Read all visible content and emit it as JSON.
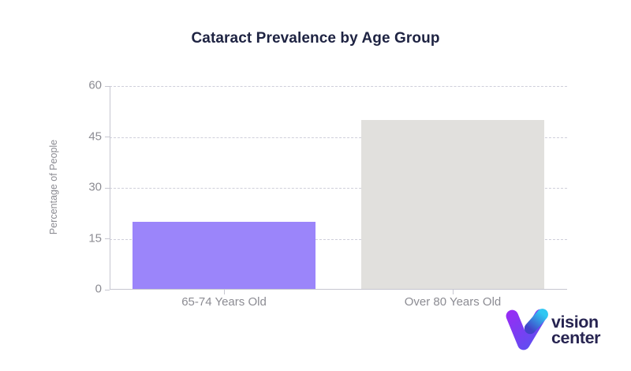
{
  "chart_data": {
    "type": "bar",
    "title": "Cataract Prevalence by Age Group",
    "categories": [
      "65-74 Years Old",
      "Over 80 Years Old"
    ],
    "values": [
      20,
      50
    ],
    "bar_colors": [
      "#9b85fa",
      "#e1e0dd"
    ],
    "xlabel": "",
    "ylabel": "Percentage of People",
    "ylim": [
      0,
      60
    ],
    "yticks": [
      0,
      15,
      30,
      45,
      60
    ],
    "grid": "horizontal-dashed",
    "legend": "none"
  },
  "colors": {
    "title": "#1e2342",
    "axis_label": "#8c8c93",
    "grid": "#cfcfda",
    "axis_line": "#c6c6d0",
    "background": "#ffffff"
  },
  "branding": {
    "logo_line1": "vision",
    "logo_line2": "center",
    "logo_icon": "vision-center-v-icon",
    "logo_text_color": "#272451",
    "logo_purple_start": "#962df4",
    "logo_purple_end": "#5c50f0",
    "logo_blue_start": "#2fc7f2",
    "logo_blue_end": "#4143c9"
  }
}
